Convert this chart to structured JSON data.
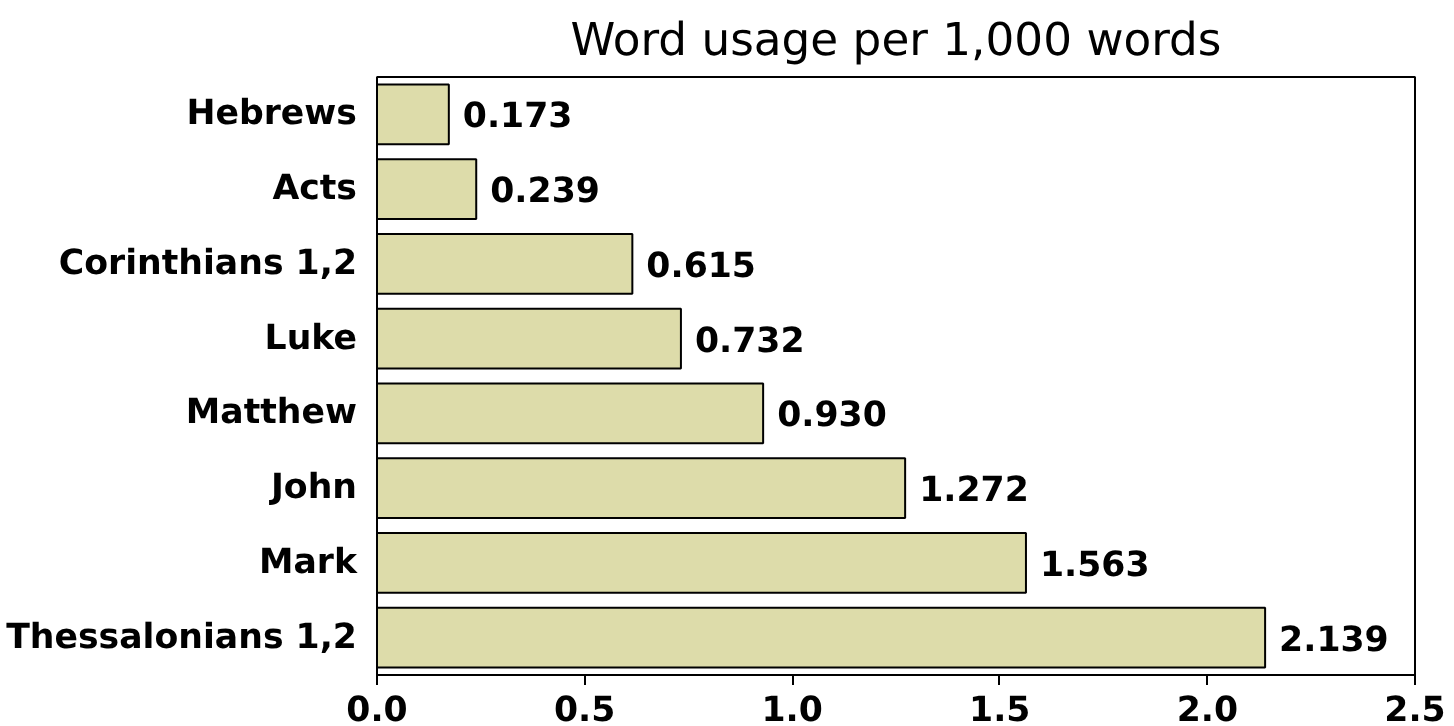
{
  "chart_data": {
    "type": "bar",
    "orientation": "horizontal",
    "title": "Word usage per 1,000 words",
    "categories": [
      "Hebrews",
      "Acts",
      "Corinthians 1,2",
      "Luke",
      "Matthew",
      "John",
      "Mark",
      "Thessalonians 1,2"
    ],
    "values": [
      0.173,
      0.239,
      0.615,
      0.732,
      0.93,
      1.272,
      1.563,
      2.139
    ],
    "value_labels": [
      "0.173",
      "0.239",
      "0.615",
      "0.732",
      "0.930",
      "1.272",
      "1.563",
      "2.139"
    ],
    "color": "#dddcaa",
    "xlim": [
      0,
      2.5
    ],
    "xticks": [
      {
        "value": 0,
        "label": "0.0"
      },
      {
        "value": 0.5,
        "label": "0.5"
      },
      {
        "value": 1,
        "label": "1.0"
      },
      {
        "value": 1.5,
        "label": "1.5"
      },
      {
        "value": 2,
        "label": "2.0"
      },
      {
        "value": 2.5,
        "label": "2.5"
      }
    ],
    "grid": false
  }
}
